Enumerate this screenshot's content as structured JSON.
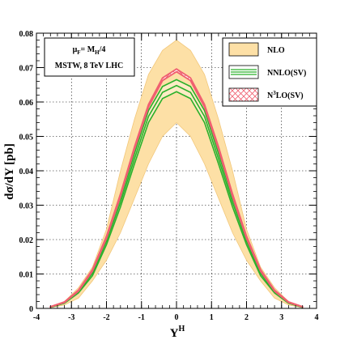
{
  "chart_data": {
    "type": "line",
    "xlabel": "Y^H",
    "xlabel_main": "Y",
    "xlabel_sup": "H",
    "ylabel": "dσ/dY [pb]",
    "xlim": [
      -4,
      4
    ],
    "ylim": [
      0,
      0.08
    ],
    "x_ticks": [
      "-4",
      "-3",
      "-2",
      "-1",
      "0",
      "1",
      "2",
      "3",
      "4"
    ],
    "y_ticks": [
      "0",
      "0.01",
      "0.02",
      "0.03",
      "0.04",
      "0.05",
      "0.06",
      "0.07",
      "0.08"
    ],
    "grid": true,
    "legend_position": "top-right",
    "annotation": {
      "line1_main": "μ",
      "line1_sub": "F",
      "line1_mid": "= M",
      "line1_sub2": "H",
      "line1_end": "/4",
      "line2": "MSTW, 8 TeV LHC"
    },
    "legend": {
      "nlo": "NLO",
      "nnlo": "NNLO(SV)",
      "n3lo_pre": "N",
      "n3lo_sup": "3",
      "n3lo_post": "LO(SV)"
    },
    "x": [
      -3.6,
      -3.2,
      -2.8,
      -2.4,
      -2.0,
      -1.6,
      -1.2,
      -0.8,
      -0.4,
      0.0,
      0.4,
      0.8,
      1.2,
      1.6,
      2.0,
      2.4,
      2.8,
      3.2,
      3.6
    ],
    "series": [
      {
        "name": "NLO",
        "colors": {
          "fill": "#fde0a6",
          "stroke": "#f2c77a"
        },
        "lower": [
          0.0002,
          0.001,
          0.003,
          0.008,
          0.014,
          0.022,
          0.032,
          0.042,
          0.05,
          0.054,
          0.05,
          0.042,
          0.032,
          0.022,
          0.014,
          0.008,
          0.003,
          0.001,
          0.0002
        ],
        "upper": [
          0.0006,
          0.002,
          0.006,
          0.012,
          0.023,
          0.04,
          0.055,
          0.068,
          0.075,
          0.078,
          0.075,
          0.068,
          0.055,
          0.04,
          0.023,
          0.012,
          0.006,
          0.002,
          0.0006
        ]
      },
      {
        "name": "NNLO(SV)",
        "colors": {
          "fill": "#ffffff",
          "stroke": "#2ab02a"
        },
        "lower": [
          0.0003,
          0.0015,
          0.0045,
          0.0095,
          0.0185,
          0.0295,
          0.042,
          0.054,
          0.061,
          0.063,
          0.061,
          0.054,
          0.042,
          0.0295,
          0.0185,
          0.0095,
          0.0045,
          0.0015,
          0.0003
        ],
        "upper": [
          0.0004,
          0.0018,
          0.005,
          0.011,
          0.0205,
          0.032,
          0.045,
          0.0575,
          0.0645,
          0.0665,
          0.0645,
          0.0575,
          0.045,
          0.032,
          0.0205,
          0.011,
          0.005,
          0.0018,
          0.0004
        ],
        "central": [
          0.00035,
          0.0016,
          0.0048,
          0.0102,
          0.0195,
          0.0308,
          0.0435,
          0.0558,
          0.0628,
          0.0648,
          0.0628,
          0.0558,
          0.0435,
          0.0308,
          0.0195,
          0.0102,
          0.0048,
          0.0016,
          0.00035
        ]
      },
      {
        "name": "N3LO(SV)",
        "colors": {
          "fill": "#ffffff",
          "stroke": "#f06070"
        },
        "lower": [
          0.0004,
          0.0017,
          0.005,
          0.0108,
          0.0203,
          0.0325,
          0.0462,
          0.0585,
          0.0662,
          0.0688,
          0.0662,
          0.0585,
          0.0462,
          0.0325,
          0.0203,
          0.0108,
          0.005,
          0.0017,
          0.0004
        ],
        "upper": [
          0.0005,
          0.0019,
          0.0053,
          0.0113,
          0.021,
          0.0333,
          0.047,
          0.0593,
          0.067,
          0.0696,
          0.067,
          0.0593,
          0.047,
          0.0333,
          0.021,
          0.0113,
          0.0053,
          0.0019,
          0.0005
        ]
      }
    ]
  }
}
